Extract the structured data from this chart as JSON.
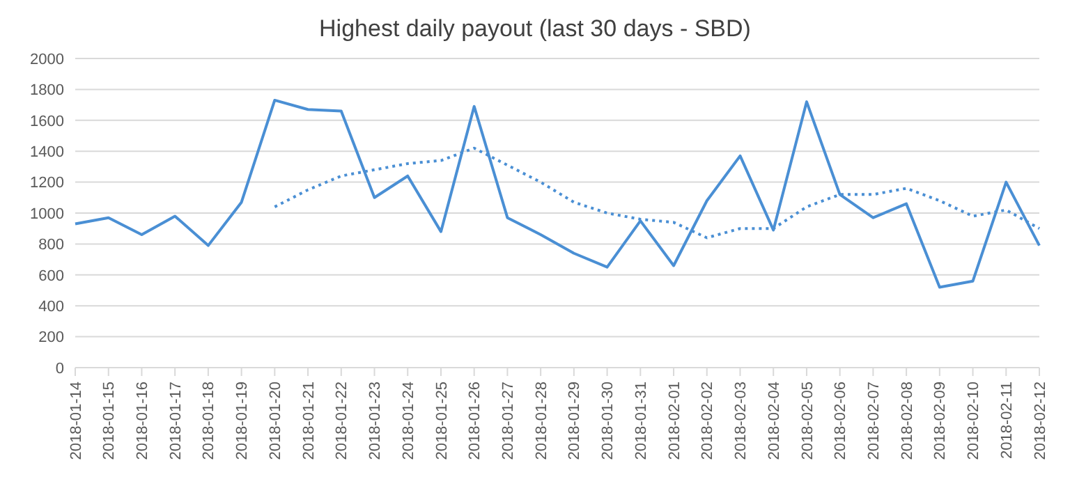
{
  "chart_data": {
    "type": "line",
    "title": "Highest daily payout (last 30 days - SBD)",
    "categories": [
      "2018-01-14",
      "2018-01-15",
      "2018-01-16",
      "2018-01-17",
      "2018-01-18",
      "2018-01-19",
      "2018-01-20",
      "2018-01-21",
      "2018-01-22",
      "2018-01-23",
      "2018-01-24",
      "2018-01-25",
      "2018-01-26",
      "2018-01-27",
      "2018-01-28",
      "2018-01-29",
      "2018-01-30",
      "2018-01-31",
      "2018-02-01",
      "2018-02-02",
      "2018-02-03",
      "2018-02-04",
      "2018-02-05",
      "2018-02-06",
      "2018-02-07",
      "2018-02-08",
      "2018-02-09",
      "2018-02-10",
      "2018-02-11",
      "2018-02-12"
    ],
    "series": [
      {
        "color": "#4a8fd4",
        "line_style": "solid",
        "values": [
          930,
          970,
          860,
          980,
          790,
          1070,
          1730,
          1670,
          1660,
          1100,
          1240,
          880,
          1690,
          970,
          860,
          740,
          650,
          950,
          660,
          1080,
          1370,
          890,
          1720,
          1120,
          970,
          1060,
          520,
          560,
          1200,
          790
        ]
      },
      {
        "color": "#4a8fd4",
        "line_style": "dotted",
        "values": [
          null,
          null,
          null,
          null,
          null,
          null,
          1040,
          1150,
          1240,
          1280,
          1320,
          1340,
          1420,
          1310,
          1200,
          1070,
          1000,
          960,
          940,
          840,
          900,
          900,
          1040,
          1120,
          1120,
          1160,
          1080,
          980,
          1020,
          900
        ]
      }
    ],
    "ylim": [
      0,
      2000
    ],
    "yticks": [
      0,
      200,
      400,
      600,
      800,
      1000,
      1200,
      1400,
      1600,
      1800,
      2000
    ],
    "grid": "y",
    "marker": "none"
  }
}
